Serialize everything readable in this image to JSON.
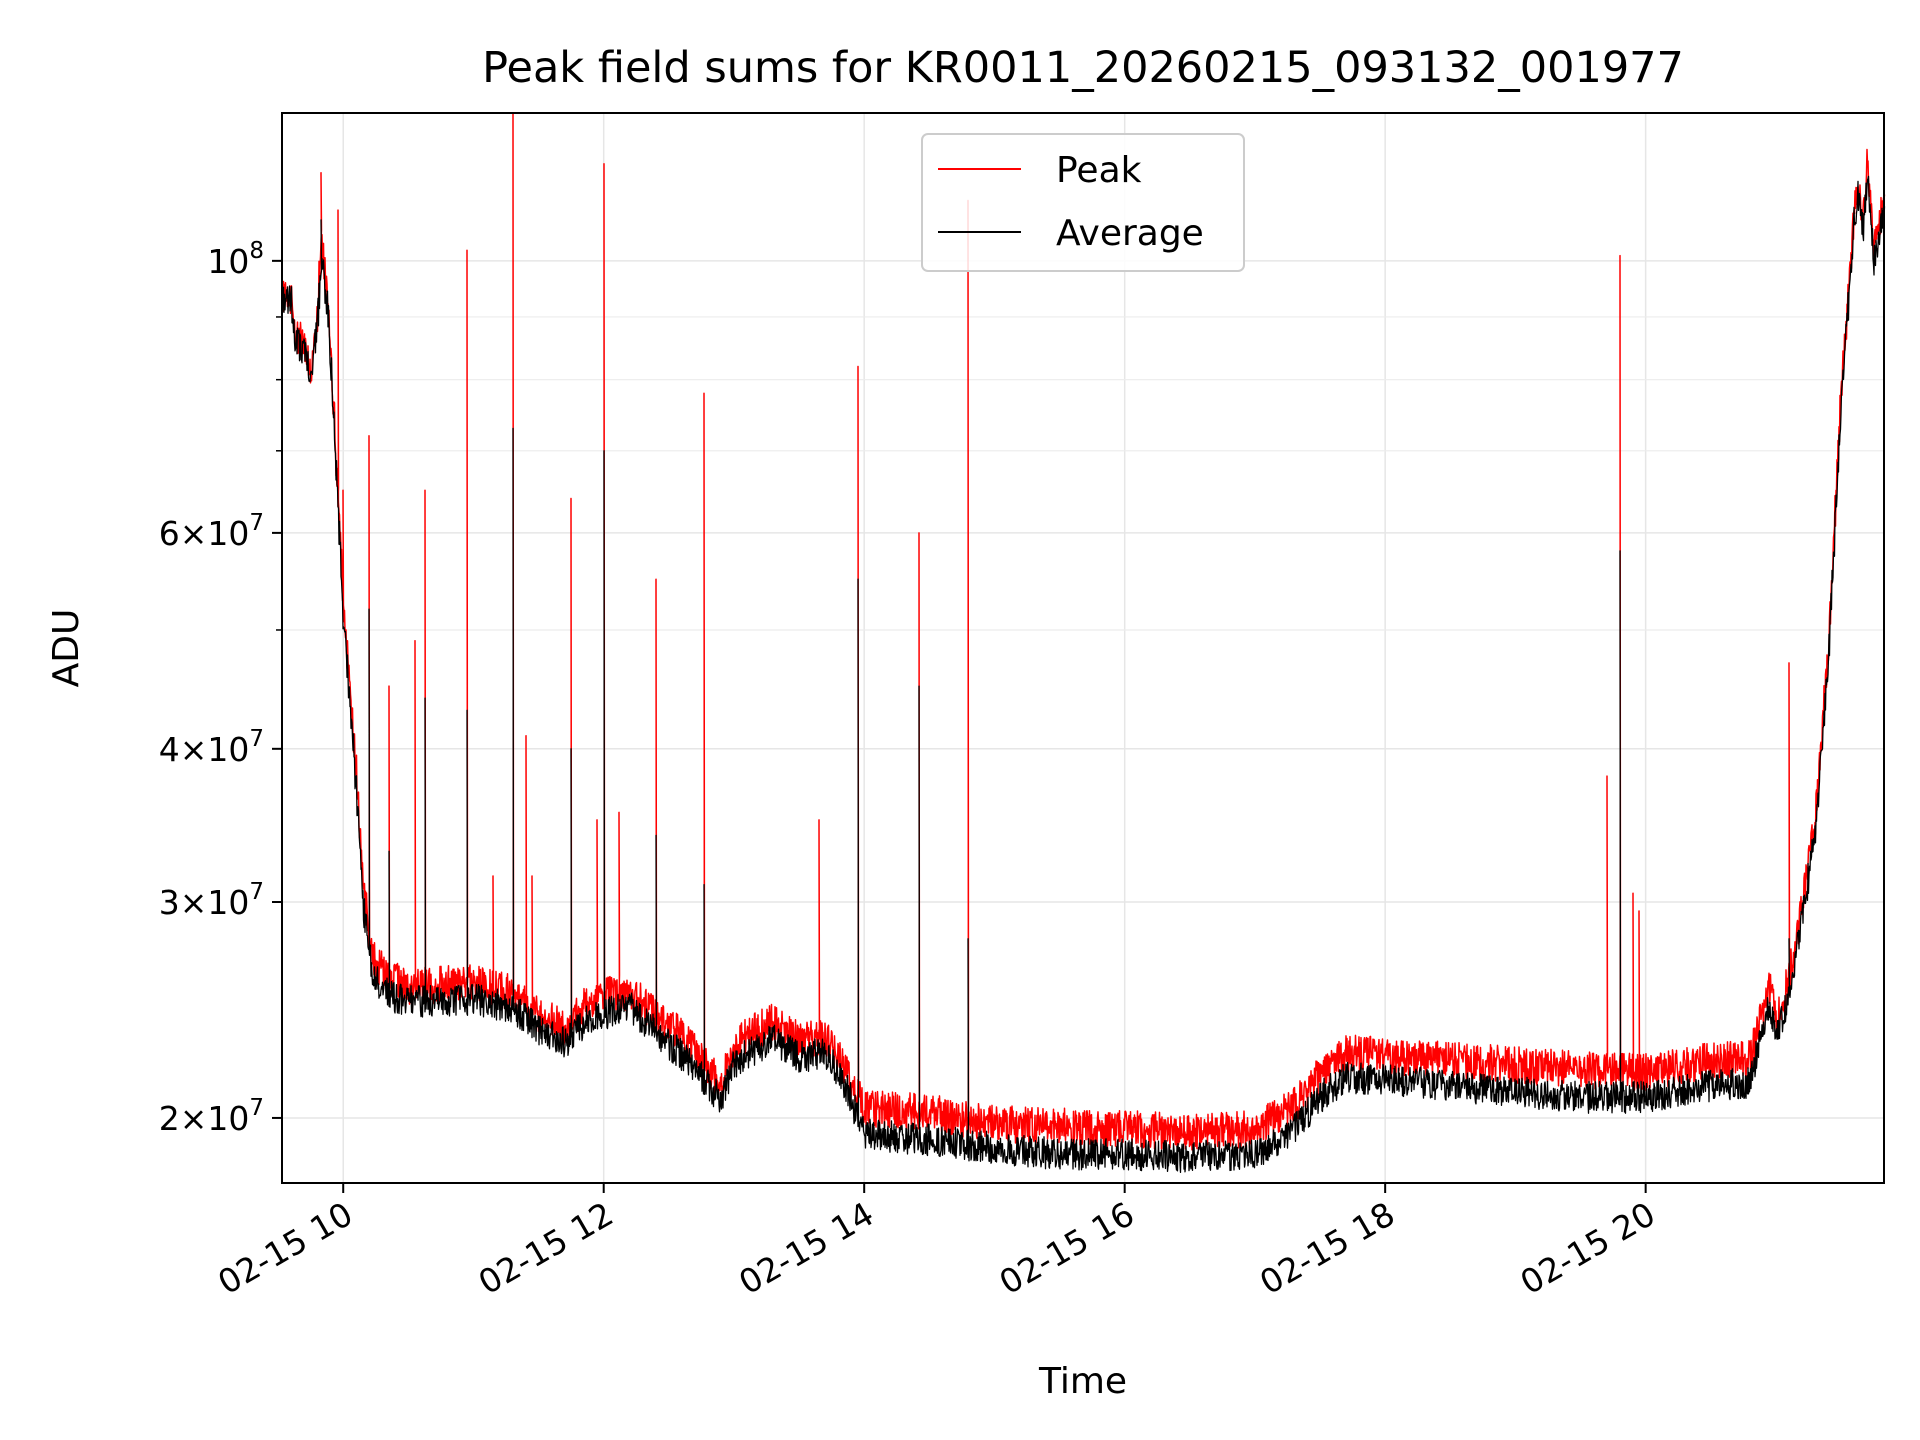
{
  "chart_data": {
    "type": "line",
    "title": "Peak field sums for KR0011_20260215_093132_001977",
    "xlabel": "Time",
    "ylabel": "ADU",
    "yscale": "log",
    "xlim": [
      9.53,
      21.83
    ],
    "ylim": [
      17700000,
      132000000
    ],
    "grid": true,
    "legend_position": "top-center",
    "x_ticks": [
      {
        "value": 10,
        "label": "02-15 10"
      },
      {
        "value": 12,
        "label": "02-15 12"
      },
      {
        "value": 14,
        "label": "02-15 14"
      },
      {
        "value": 16,
        "label": "02-15 16"
      },
      {
        "value": 18,
        "label": "02-15 18"
      },
      {
        "value": 20,
        "label": "02-15 20"
      }
    ],
    "y_ticks": [
      {
        "value": 20000000,
        "mantissa": "2",
        "base": "10",
        "exp": "7"
      },
      {
        "value": 30000000,
        "mantissa": "3",
        "base": "10",
        "exp": "7"
      },
      {
        "value": 40000000,
        "mantissa": "4",
        "base": "10",
        "exp": "7"
      },
      {
        "value": 60000000,
        "mantissa": "6",
        "base": "10",
        "exp": "7"
      },
      {
        "value": 100000000,
        "mantissa": "",
        "base": "10",
        "exp": "8"
      }
    ],
    "y_minor_ticks": [
      50000000,
      70000000,
      80000000,
      90000000
    ],
    "series": [
      {
        "name": "Peak",
        "color": "#ff0000",
        "baseline": [
          [
            9.53,
            94000000
          ],
          [
            9.6,
            93000000
          ],
          [
            9.63,
            87000000
          ],
          [
            9.72,
            85000000
          ],
          [
            9.75,
            80000000
          ],
          [
            9.8,
            90000000
          ],
          [
            9.83,
            105000000
          ],
          [
            9.88,
            93000000
          ],
          [
            9.93,
            74000000
          ],
          [
            10.0,
            52000000
          ],
          [
            10.1,
            38000000
          ],
          [
            10.15,
            31000000
          ],
          [
            10.22,
            27000000
          ],
          [
            10.35,
            26000000
          ],
          [
            10.5,
            25600000
          ],
          [
            11.0,
            25800000
          ],
          [
            11.3,
            25300000
          ],
          [
            11.5,
            24300000
          ],
          [
            11.7,
            23700000
          ],
          [
            11.9,
            25000000
          ],
          [
            12.2,
            25400000
          ],
          [
            12.3,
            24800000
          ],
          [
            12.6,
            23300000
          ],
          [
            12.9,
            21300000
          ],
          [
            13.0,
            23000000
          ],
          [
            13.3,
            24000000
          ],
          [
            13.5,
            23100000
          ],
          [
            13.7,
            23300000
          ],
          [
            13.85,
            22000000
          ],
          [
            14.0,
            20400000
          ],
          [
            14.5,
            20200000
          ],
          [
            15.0,
            19800000
          ],
          [
            15.5,
            19700000
          ],
          [
            16.0,
            19600000
          ],
          [
            16.5,
            19500000
          ],
          [
            17.0,
            19600000
          ],
          [
            17.3,
            20500000
          ],
          [
            17.5,
            21700000
          ],
          [
            17.7,
            22600000
          ],
          [
            18.0,
            22500000
          ],
          [
            19.0,
            22100000
          ],
          [
            19.5,
            21900000
          ],
          [
            20.0,
            21800000
          ],
          [
            20.4,
            22200000
          ],
          [
            20.8,
            22400000
          ],
          [
            20.95,
            25500000
          ],
          [
            21.0,
            24000000
          ],
          [
            21.1,
            26000000
          ],
          [
            21.2,
            30000000
          ],
          [
            21.3,
            35000000
          ],
          [
            21.4,
            48000000
          ],
          [
            21.5,
            78000000
          ],
          [
            21.6,
            110000000
          ],
          [
            21.63,
            115000000
          ],
          [
            21.67,
            108000000
          ],
          [
            21.7,
            120000000
          ],
          [
            21.75,
            102000000
          ],
          [
            21.83,
            112000000
          ]
        ],
        "spikes": [
          [
            9.83,
            118000000
          ],
          [
            9.96,
            110000000
          ],
          [
            10.0,
            65000000
          ],
          [
            10.2,
            72000000
          ],
          [
            10.35,
            45000000
          ],
          [
            10.55,
            49000000
          ],
          [
            10.63,
            65000000
          ],
          [
            10.95,
            102000000
          ],
          [
            11.15,
            31500000
          ],
          [
            11.3,
            132000000
          ],
          [
            11.4,
            41000000
          ],
          [
            11.45,
            31500000
          ],
          [
            11.75,
            64000000
          ],
          [
            11.95,
            35000000
          ],
          [
            12.0,
            120000000
          ],
          [
            12.12,
            35500000
          ],
          [
            12.4,
            55000000
          ],
          [
            12.77,
            78000000
          ],
          [
            13.65,
            35000000
          ],
          [
            13.95,
            82000000
          ],
          [
            14.42,
            60000000
          ],
          [
            14.8,
            112000000
          ],
          [
            19.7,
            38000000
          ],
          [
            19.8,
            101000000
          ],
          [
            19.9,
            30500000
          ],
          [
            19.95,
            29500000
          ],
          [
            21.1,
            47000000
          ]
        ]
      },
      {
        "name": "Average",
        "color": "#000000",
        "baseline": [
          [
            9.53,
            93500000
          ],
          [
            9.6,
            92500000
          ],
          [
            9.63,
            86000000
          ],
          [
            9.72,
            84000000
          ],
          [
            9.75,
            79000000
          ],
          [
            9.8,
            89000000
          ],
          [
            9.83,
            100000000
          ],
          [
            9.88,
            91000000
          ],
          [
            9.93,
            73000000
          ],
          [
            10.0,
            51000000
          ],
          [
            10.1,
            37000000
          ],
          [
            10.15,
            30000000
          ],
          [
            10.22,
            26200000
          ],
          [
            10.35,
            25200000
          ],
          [
            10.5,
            24900000
          ],
          [
            11.0,
            25000000
          ],
          [
            11.3,
            24600000
          ],
          [
            11.5,
            23600000
          ],
          [
            11.7,
            23000000
          ],
          [
            11.9,
            24200000
          ],
          [
            12.2,
            24600000
          ],
          [
            12.3,
            24000000
          ],
          [
            12.6,
            22500000
          ],
          [
            12.9,
            20700000
          ],
          [
            13.0,
            22200000
          ],
          [
            13.3,
            23200000
          ],
          [
            13.5,
            22400000
          ],
          [
            13.7,
            22600000
          ],
          [
            13.85,
            21300000
          ],
          [
            14.0,
            19400000
          ],
          [
            14.5,
            19200000
          ],
          [
            15.0,
            18900000
          ],
          [
            15.5,
            18700000
          ],
          [
            16.0,
            18700000
          ],
          [
            16.5,
            18600000
          ],
          [
            17.0,
            18700000
          ],
          [
            17.3,
            19600000
          ],
          [
            17.5,
            20800000
          ],
          [
            17.7,
            21600000
          ],
          [
            18.0,
            21500000
          ],
          [
            19.0,
            21000000
          ],
          [
            19.5,
            20800000
          ],
          [
            20.0,
            20800000
          ],
          [
            20.4,
            21200000
          ],
          [
            20.8,
            21400000
          ],
          [
            20.95,
            24800000
          ],
          [
            21.0,
            23200000
          ],
          [
            21.1,
            25200000
          ],
          [
            21.2,
            29200000
          ],
          [
            21.3,
            34000000
          ],
          [
            21.4,
            47000000
          ],
          [
            21.5,
            76000000
          ],
          [
            21.6,
            108000000
          ],
          [
            21.63,
            113000000
          ],
          [
            21.67,
            106000000
          ],
          [
            21.7,
            118000000
          ],
          [
            21.75,
            100000000
          ],
          [
            21.83,
            110000000
          ]
        ],
        "spikes": [
          [
            9.83,
            108000000
          ],
          [
            10.2,
            52000000
          ],
          [
            10.35,
            33000000
          ],
          [
            10.63,
            44000000
          ],
          [
            10.95,
            43000000
          ],
          [
            11.3,
            73000000
          ],
          [
            11.75,
            40000000
          ],
          [
            12.0,
            70000000
          ],
          [
            12.4,
            34000000
          ],
          [
            12.77,
            31000000
          ],
          [
            13.95,
            55000000
          ],
          [
            14.42,
            45000000
          ],
          [
            14.8,
            28000000
          ],
          [
            19.8,
            58000000
          ],
          [
            21.1,
            28000000
          ]
        ]
      }
    ]
  }
}
